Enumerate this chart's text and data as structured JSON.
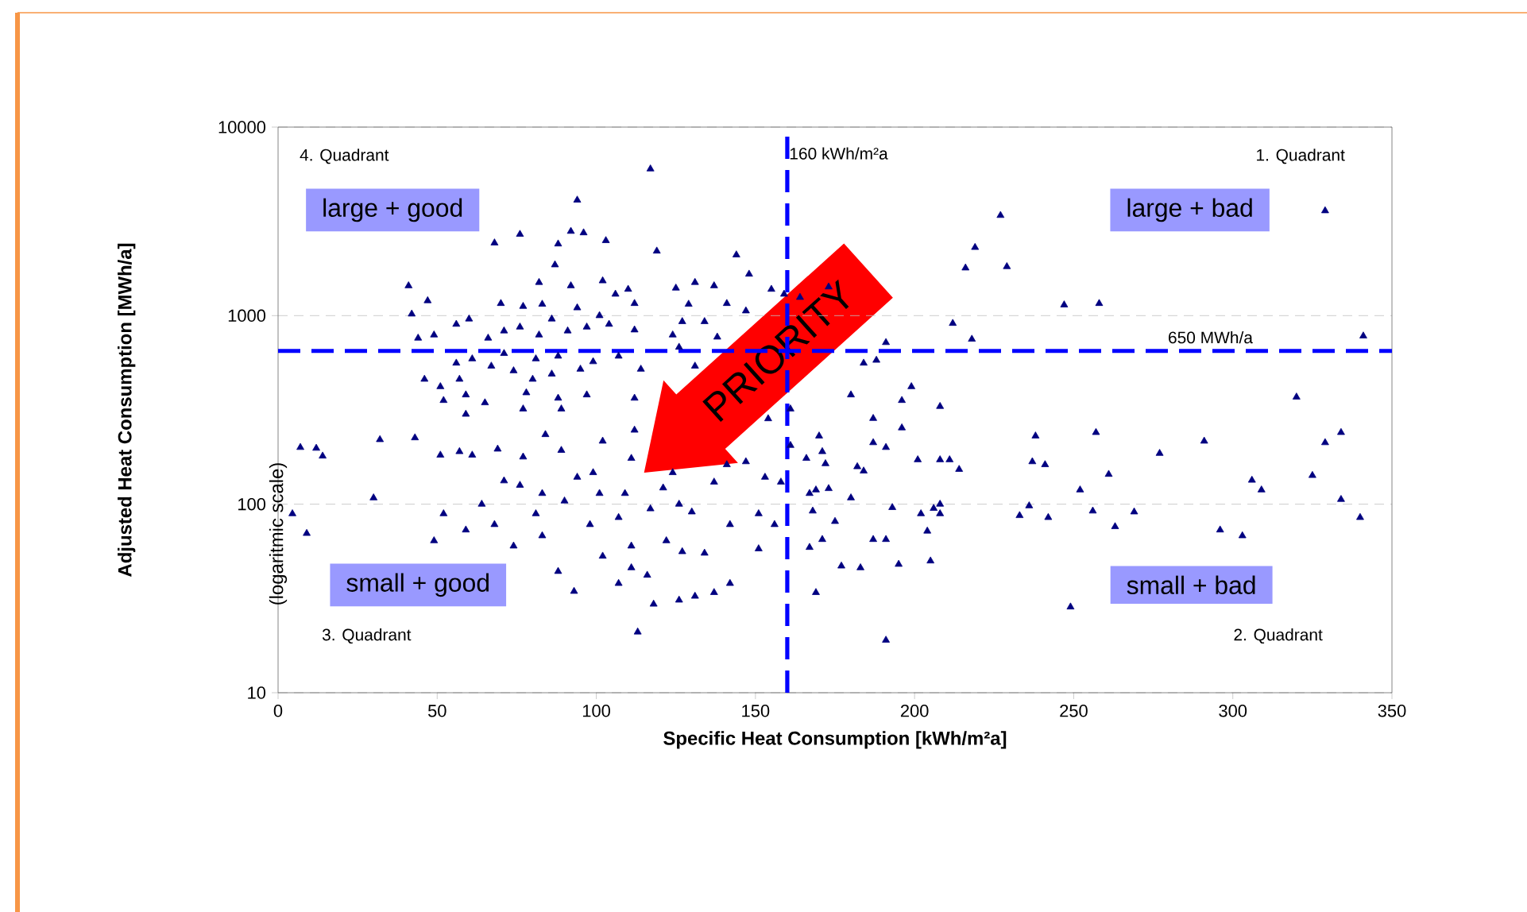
{
  "chart_data": {
    "type": "scatter",
    "xlabel": "Specific Heat Consumption [kWh/m²a]",
    "ylabel": "Adjusted Heat Consumption [MWh/a]",
    "annotations": [
      "4. Quadrant",
      "1. Quadrant",
      "3. Quadrant",
      "2. Quadrant",
      "large + good",
      "large + bad",
      "small + good",
      "small + bad",
      "PRIORITY",
      "(logaritmic scale)"
    ],
    "xlim": [
      0,
      350
    ],
    "xticks": [
      0,
      50,
      100,
      150,
      200,
      250,
      300,
      350
    ],
    "ylim": [
      10,
      10000
    ],
    "yticks": [
      10,
      100,
      1000,
      10000
    ],
    "log": "y",
    "grid": "y",
    "marker": "triangle",
    "ref_lines": [
      {
        "axis": "x",
        "value": 160,
        "label": "160 kWh/m²a",
        "color": "#0000ff",
        "line_style": "dashed"
      },
      {
        "axis": "y",
        "value": 650,
        "label": "650 MWh/a",
        "color": "#0000ff",
        "line_style": "dashed"
      }
    ],
    "series": [
      {
        "color": "#000080",
        "x": [
          117,
          94,
          92,
          96,
          76,
          68,
          88,
          103,
          119,
          144,
          87,
          148,
          41,
          47,
          82,
          92,
          102,
          106,
          110,
          125,
          131,
          137,
          155,
          159,
          42,
          70,
          77,
          83,
          94,
          112,
          129,
          141,
          147,
          44,
          49,
          56,
          60,
          66,
          71,
          76,
          82,
          86,
          91,
          97,
          101,
          104,
          112,
          124,
          127,
          134,
          138,
          56,
          61,
          71,
          81,
          88,
          99,
          107,
          114,
          126,
          131,
          46,
          51,
          57,
          67,
          74,
          80,
          86,
          95,
          52,
          59,
          65,
          78,
          88,
          97,
          112,
          59,
          77,
          89,
          7,
          12,
          14,
          32,
          43,
          4.5,
          9,
          30,
          51,
          57,
          61,
          52,
          49,
          59,
          64,
          68,
          69,
          71,
          76,
          77,
          83,
          84,
          81,
          83,
          74,
          88,
          93,
          89,
          90,
          94,
          99,
          101,
          102,
          98,
          102,
          107,
          111,
          107,
          112,
          111,
          109,
          111,
          116,
          118,
          113,
          117,
          121,
          124,
          126,
          122,
          127,
          126,
          131,
          137,
          142,
          134,
          137,
          141,
          130,
          142,
          147,
          151,
          153,
          151,
          156,
          154,
          158,
          227,
          219,
          216,
          229,
          247,
          258,
          212,
          218,
          191,
          184,
          188,
          329,
          341,
          320,
          180,
          196,
          199,
          208,
          173,
          164,
          161,
          187,
          196,
          170,
          187,
          191,
          238,
          257,
          291,
          329,
          334,
          171,
          166,
          161,
          201,
          208,
          211,
          214,
          182,
          184,
          172,
          237,
          241,
          277,
          261,
          325,
          306,
          309,
          252,
          169,
          173,
          167,
          180,
          193,
          202,
          206,
          208,
          208,
          236,
          233,
          242,
          256,
          269,
          263,
          296,
          303,
          334,
          340,
          168,
          175,
          167,
          171,
          187,
          191,
          204,
          205,
          177,
          183,
          195,
          169,
          249,
          191
        ],
        "values": [
          6000,
          4100,
          2800,
          2750,
          2700,
          2430,
          2400,
          2500,
          2200,
          2100,
          1860,
          1660,
          1440,
          1200,
          1500,
          1440,
          1530,
          1300,
          1380,
          1400,
          1500,
          1440,
          1380,
          1300,
          1020,
          1160,
          1120,
          1150,
          1100,
          1160,
          1150,
          1160,
          1060,
          760,
          790,
          900,
          960,
          760,
          830,
          870,
          790,
          960,
          830,
          870,
          1000,
          900,
          840,
          790,
          930,
          930,
          770,
          560,
          590,
          630,
          590,
          610,
          570,
          610,
          520,
          680,
          540,
          460,
          420,
          460,
          540,
          510,
          460,
          490,
          520,
          355,
          380,
          345,
          390,
          365,
          380,
          365,
          300,
          320,
          320,
          200,
          198,
          180,
          220,
          225,
          89,
          70,
          108,
          182,
          190,
          182,
          89,
          64,
          73,
          100,
          78,
          196,
          133,
          126,
          178,
          114,
          234,
          89,
          68,
          60,
          44,
          34.5,
          193,
          104,
          139,
          147,
          114,
          216,
          78,
          53,
          38,
          46,
          85,
          247,
          175,
          114,
          60,
          42,
          29.5,
          21,
          94.5,
          122,
          147,
          100,
          64,
          56,
          31,
          32.5,
          34,
          38,
          55,
          131,
          162,
          91,
          78,
          168,
          89,
          139,
          58,
          78,
          284,
          131,
          3400,
          2300,
          1790,
          1820,
          1140,
          1160,
          910,
          750,
          720,
          560,
          580,
          3600,
          780,
          370,
          380,
          355,
          420,
          330,
          1420,
          1250,
          320,
          285,
          254,
          230,
          212,
          200,
          230,
          240,
          216,
          212,
          240,
          190,
          175,
          205,
          172,
          172,
          172,
          153,
          158,
          150,
          164,
          168,
          162,
          186,
          144,
          142,
          134,
          119,
          119,
          119,
          121,
          114,
          108,
          96,
          89,
          95,
          100,
          89,
          98,
          87,
          85,
          92,
          91,
          76,
          73,
          68,
          106,
          85,
          92,
          81,
          59,
          65,
          65,
          65,
          72,
          50,
          47,
          46,
          48,
          34,
          28.5,
          19
        ]
      }
    ]
  }
}
